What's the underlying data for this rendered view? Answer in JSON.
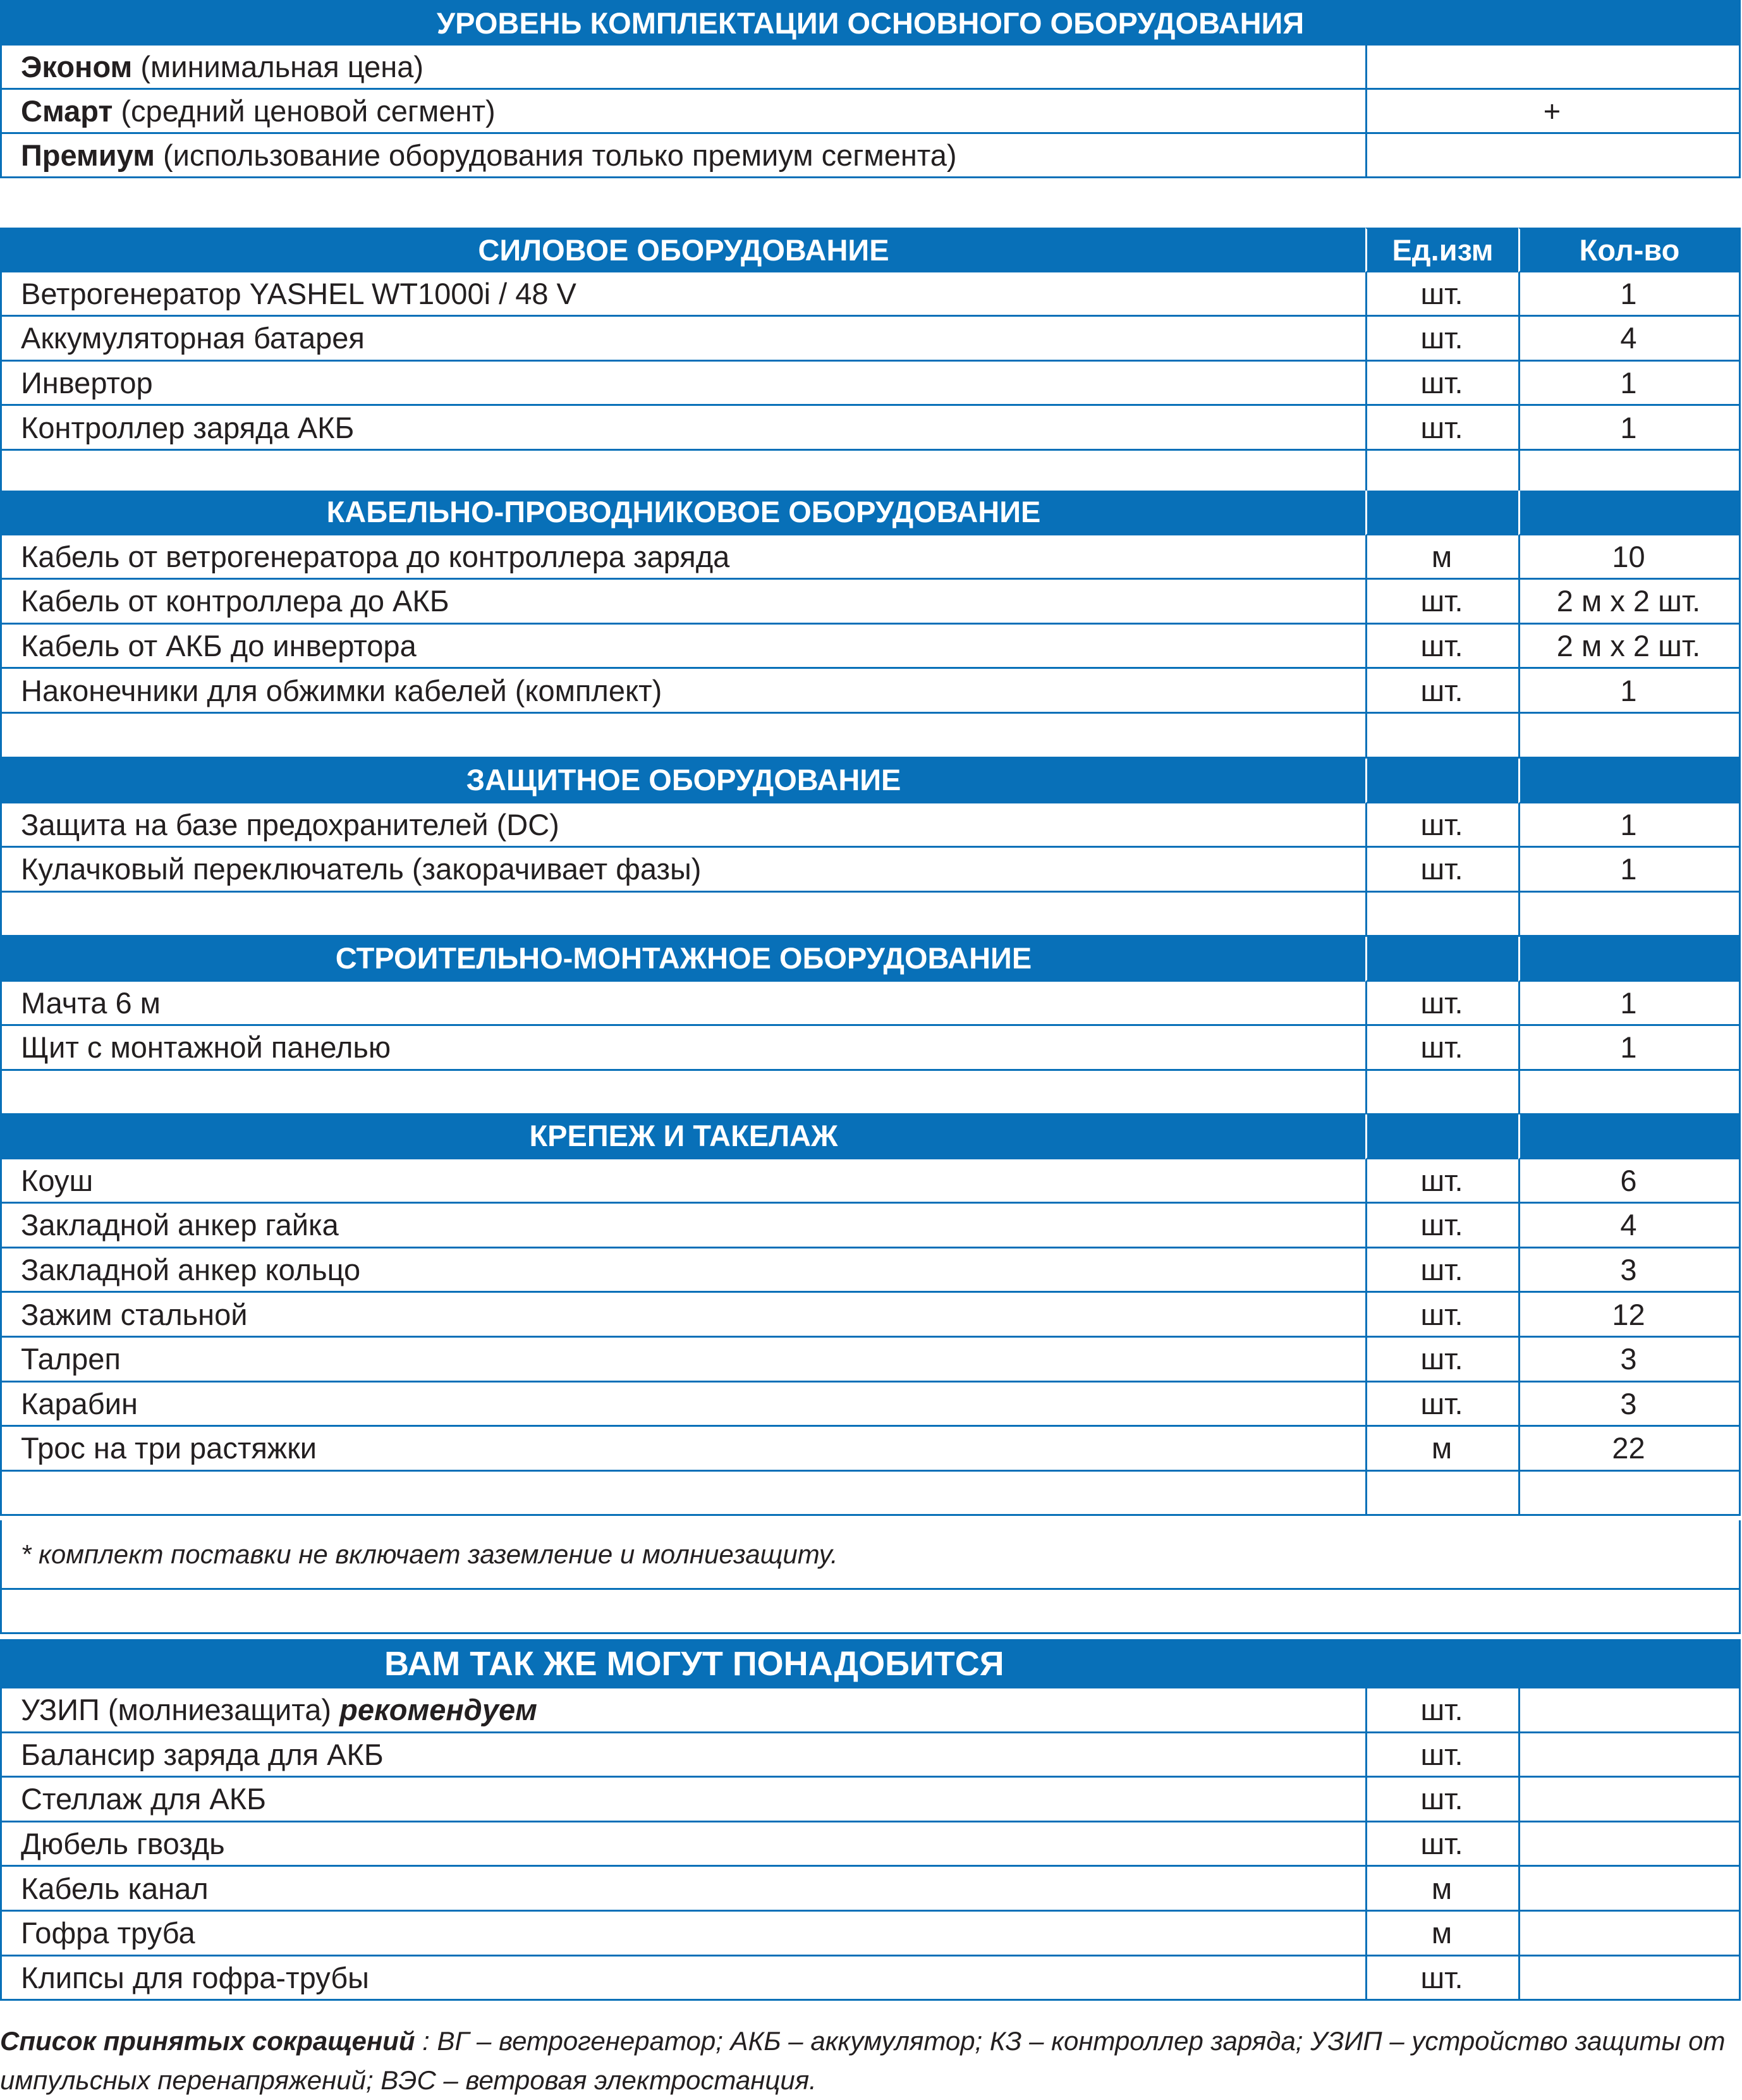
{
  "level": {
    "title": "УРОВЕНЬ КОМПЛЕКТАЦИИ ОСНОВНОГО ОБОРУДОВАНИЯ",
    "rows": [
      {
        "name": "Эконом",
        "desc": " (минимальная цена)",
        "mark": ""
      },
      {
        "name": "Смарт",
        "desc": " (средний ценовой сегмент)",
        "mark": "+"
      },
      {
        "name": "Премиум",
        "desc": " (использование оборудования только премиум сегмента)",
        "mark": ""
      }
    ]
  },
  "columns": {
    "unit": "Ед.изм",
    "qty": "Кол-во"
  },
  "sections": [
    {
      "title": "СИЛОВОЕ ОБОРУДОВАНИЕ",
      "rows": [
        {
          "name": "Ветрогенератор YASHEL WT1000i / 48 V",
          "unit": "шт.",
          "qty": "1"
        },
        {
          "name": "Аккумуляторная батарея",
          "unit": "шт.",
          "qty": "4"
        },
        {
          "name": "Инвертор",
          "unit": "шт.",
          "qty": "1"
        },
        {
          "name": "Контроллер заряда АКБ",
          "unit": "шт.",
          "qty": "1"
        }
      ]
    },
    {
      "title": "КАБЕЛЬНО-ПРОВОДНИКОВОЕ ОБОРУДОВАНИЕ",
      "rows": [
        {
          "name": "Кабель от ветрогенератора до контроллера заряда",
          "unit": "м",
          "qty": "10"
        },
        {
          "name": "Кабель от контроллера до АКБ",
          "unit": "шт.",
          "qty": "2 м х 2 шт."
        },
        {
          "name": "Кабель от АКБ до инвертора",
          "unit": "шт.",
          "qty": "2 м х 2 шт."
        },
        {
          "name": "Наконечники для обжимки кабелей (комплект)",
          "unit": "шт.",
          "qty": "1"
        }
      ]
    },
    {
      "title": "ЗАЩИТНОЕ ОБОРУДОВАНИЕ",
      "rows": [
        {
          "name": "Защита на базе предохранителей (DC)",
          "unit": "шт.",
          "qty": "1"
        },
        {
          "name": "Кулачковый переключатель (закорачивает фазы)",
          "unit": "шт.",
          "qty": "1"
        }
      ]
    },
    {
      "title": "СТРОИТЕЛЬНО-МОНТАЖНОЕ ОБОРУДОВАНИЕ",
      "rows": [
        {
          "name": "Мачта 6 м",
          "unit": "шт.",
          "qty": "1"
        },
        {
          "name": "Щит с монтажной панелью",
          "unit": "шт.",
          "qty": "1"
        }
      ]
    },
    {
      "title": "КРЕПЕЖ И ТАКЕЛАЖ",
      "rows": [
        {
          "name": "Коуш",
          "unit": "шт.",
          "qty": "6"
        },
        {
          "name": "Закладной анкер гайка",
          "unit": "шт.",
          "qty": "4"
        },
        {
          "name": "Закладной анкер кольцо",
          "unit": "шт.",
          "qty": "3"
        },
        {
          "name": "Зажим стальной",
          "unit": "шт.",
          "qty": "12"
        },
        {
          "name": "Талреп",
          "unit": "шт.",
          "qty": "3"
        },
        {
          "name": "Карабин",
          "unit": "шт.",
          "qty": "3"
        },
        {
          "name": "Трос на три растяжки",
          "unit": "м",
          "qty": "22"
        }
      ]
    }
  ],
  "note": "* комплект поставки не включает заземление и молниезащиту.",
  "extra": {
    "title": "ВАМ ТАК ЖЕ МОГУТ ПОНАДОБИТСЯ",
    "rows": [
      {
        "name": "УЗИП (молниезащита) ",
        "emph": "рекомендуем",
        "unit": "шт."
      },
      {
        "name": "Балансир заряда для АКБ",
        "emph": "",
        "unit": "шт."
      },
      {
        "name": "Стеллаж для АКБ",
        "emph": "",
        "unit": "шт."
      },
      {
        "name": "Дюбель гвоздь",
        "emph": "",
        "unit": "шт."
      },
      {
        "name": "Кабель канал",
        "emph": "",
        "unit": "м"
      },
      {
        "name": "Гофра труба",
        "emph": "",
        "unit": "м"
      },
      {
        "name": "Клипсы для гофра-трубы",
        "emph": "",
        "unit": "шт."
      }
    ]
  },
  "abbreviations": {
    "label": "Список принятых сокращений",
    "text": " :  ВГ – ветрогенератор;  АКБ – аккумулятор; КЗ  – контроллер заряда; УЗИП  – устройство защиты от импульсных перенапряжений; ВЭС – ветровая электростанция."
  }
}
